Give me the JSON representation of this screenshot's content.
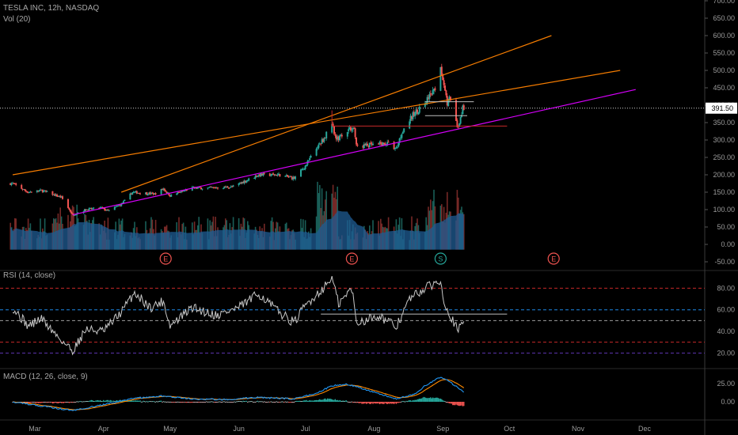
{
  "chart_data": {
    "type": "candlestick-with-indicators",
    "symbol_header": "TESLA INC, 12h, NASDAQ",
    "x_labels": [
      "Mar",
      "Apr",
      "May",
      "Jun",
      "Jul",
      "Aug",
      "Sep",
      "Oct",
      "Nov",
      "Dec"
    ],
    "colors": {
      "up": "#26a69a",
      "down": "#ef5350",
      "rsi": "#c8c8c8",
      "macd": "#2196f3",
      "signal": "#ff8a00",
      "trend_orange": "#f57c00",
      "trend_magenta": "#d500f9"
    },
    "price_panel": {
      "y_ticks": [
        "700.00",
        "650.00",
        "600.00",
        "550.00",
        "500.00",
        "450.00",
        "400.00",
        "350.00",
        "300.00",
        "250.00",
        "200.00",
        "150.00",
        "100.00",
        "50.00",
        "0.00",
        "-50.00"
      ],
      "last_price": "391.50",
      "last_price_value": 391.5,
      "volume_label": "Vol (20)",
      "event_markers": [
        {
          "label": "E",
          "date": "2020-04-29"
        },
        {
          "label": "E",
          "date": "2020-07-22"
        },
        {
          "label": "S",
          "date": "2020-08-31"
        },
        {
          "label": "E",
          "date": "2020-10-21"
        }
      ],
      "price_keypoints": [
        [
          "2020-02-20",
          175
        ],
        [
          "2020-02-27",
          150
        ],
        [
          "2020-03-04",
          155
        ],
        [
          "2020-03-13",
          135
        ],
        [
          "2020-03-18",
          85
        ],
        [
          "2020-03-24",
          100
        ],
        [
          "2020-03-31",
          105
        ],
        [
          "2020-04-03",
          96
        ],
        [
          "2020-04-09",
          115
        ],
        [
          "2020-04-14",
          150
        ],
        [
          "2020-04-24",
          145
        ],
        [
          "2020-04-28",
          160
        ],
        [
          "2020-05-01",
          140
        ],
        [
          "2020-05-11",
          162
        ],
        [
          "2020-05-18",
          162
        ],
        [
          "2020-05-29",
          165
        ],
        [
          "2020-06-10",
          200
        ],
        [
          "2020-06-19",
          200
        ],
        [
          "2020-06-26",
          190
        ],
        [
          "2020-07-01",
          225
        ],
        [
          "2020-07-06",
          275
        ],
        [
          "2020-07-10",
          310
        ],
        [
          "2020-07-13",
          350
        ],
        [
          "2020-07-15",
          300
        ],
        [
          "2020-07-20",
          330
        ],
        [
          "2020-07-23",
          335
        ],
        [
          "2020-07-24",
          282
        ],
        [
          "2020-07-31",
          285
        ],
        [
          "2020-08-07",
          290
        ],
        [
          "2020-08-11",
          275
        ],
        [
          "2020-08-14",
          330
        ],
        [
          "2020-08-19",
          375
        ],
        [
          "2020-08-24",
          405
        ],
        [
          "2020-08-28",
          440
        ],
        [
          "2020-08-31",
          498
        ],
        [
          "2020-09-01",
          480
        ],
        [
          "2020-09-02",
          447
        ],
        [
          "2020-09-03",
          407
        ],
        [
          "2020-09-04",
          418
        ],
        [
          "2020-09-08",
          330
        ],
        [
          "2020-09-09",
          366
        ],
        [
          "2020-09-10",
          391.5
        ]
      ],
      "trend_lines": [
        {
          "color": "orange",
          "from": [
            "2020-02-20",
            200
          ],
          "to": [
            "2020-11-20",
            500
          ]
        },
        {
          "color": "orange",
          "from": [
            "2020-04-09",
            150
          ],
          "to": [
            "2020-10-20",
            600
          ]
        },
        {
          "color": "magenta",
          "from": [
            "2020-03-18",
            85
          ],
          "to": [
            "2020-11-27",
            445
          ]
        }
      ],
      "horizontal_levels": [
        {
          "value": 410,
          "from": "2020-08-24",
          "to": "2020-09-15"
        },
        {
          "value": 370,
          "from": "2020-08-24",
          "to": "2020-09-12"
        },
        {
          "value": 340,
          "from": "2020-07-13",
          "to": "2020-09-30"
        }
      ]
    },
    "rsi_panel": {
      "title": "RSI (14, close)",
      "y_ticks": [
        "80.00",
        "60.00",
        "40.00",
        "20.00"
      ],
      "levels": [
        80,
        60,
        50,
        30,
        20
      ],
      "marker_level": 56,
      "keypoints": [
        [
          "2020-02-20",
          62
        ],
        [
          "2020-02-27",
          45
        ],
        [
          "2020-03-04",
          52
        ],
        [
          "2020-03-10",
          38
        ],
        [
          "2020-03-18",
          22
        ],
        [
          "2020-03-24",
          42
        ],
        [
          "2020-04-01",
          40
        ],
        [
          "2020-04-09",
          58
        ],
        [
          "2020-04-15",
          76
        ],
        [
          "2020-04-22",
          62
        ],
        [
          "2020-04-28",
          68
        ],
        [
          "2020-05-01",
          45
        ],
        [
          "2020-05-11",
          62
        ],
        [
          "2020-05-22",
          55
        ],
        [
          "2020-06-01",
          62
        ],
        [
          "2020-06-10",
          75
        ],
        [
          "2020-06-19",
          58
        ],
        [
          "2020-06-26",
          48
        ],
        [
          "2020-07-01",
          64
        ],
        [
          "2020-07-10",
          82
        ],
        [
          "2020-07-13",
          90
        ],
        [
          "2020-07-16",
          65
        ],
        [
          "2020-07-22",
          80
        ],
        [
          "2020-07-24",
          48
        ],
        [
          "2020-08-03",
          55
        ],
        [
          "2020-08-11",
          44
        ],
        [
          "2020-08-17",
          70
        ],
        [
          "2020-08-24",
          80
        ],
        [
          "2020-08-31",
          87
        ],
        [
          "2020-09-02",
          65
        ],
        [
          "2020-09-08",
          40
        ],
        [
          "2020-09-10",
          49
        ]
      ]
    },
    "macd_panel": {
      "title": "MACD (12, 26, close, 9)",
      "y_ticks": [
        "25.00",
        "0.00"
      ],
      "keypoints": [
        [
          "2020-02-20",
          0
        ],
        [
          "2020-03-02",
          -5
        ],
        [
          "2020-03-18",
          -12
        ],
        [
          "2020-04-01",
          -4
        ],
        [
          "2020-04-15",
          5
        ],
        [
          "2020-04-28",
          8
        ],
        [
          "2020-05-11",
          4
        ],
        [
          "2020-05-25",
          3
        ],
        [
          "2020-06-10",
          6
        ],
        [
          "2020-06-26",
          4
        ],
        [
          "2020-07-06",
          12
        ],
        [
          "2020-07-13",
          22
        ],
        [
          "2020-07-20",
          24
        ],
        [
          "2020-07-27",
          18
        ],
        [
          "2020-08-11",
          4
        ],
        [
          "2020-08-19",
          10
        ],
        [
          "2020-08-24",
          22
        ],
        [
          "2020-08-31",
          34
        ],
        [
          "2020-09-04",
          28
        ],
        [
          "2020-09-10",
          14
        ]
      ]
    }
  }
}
